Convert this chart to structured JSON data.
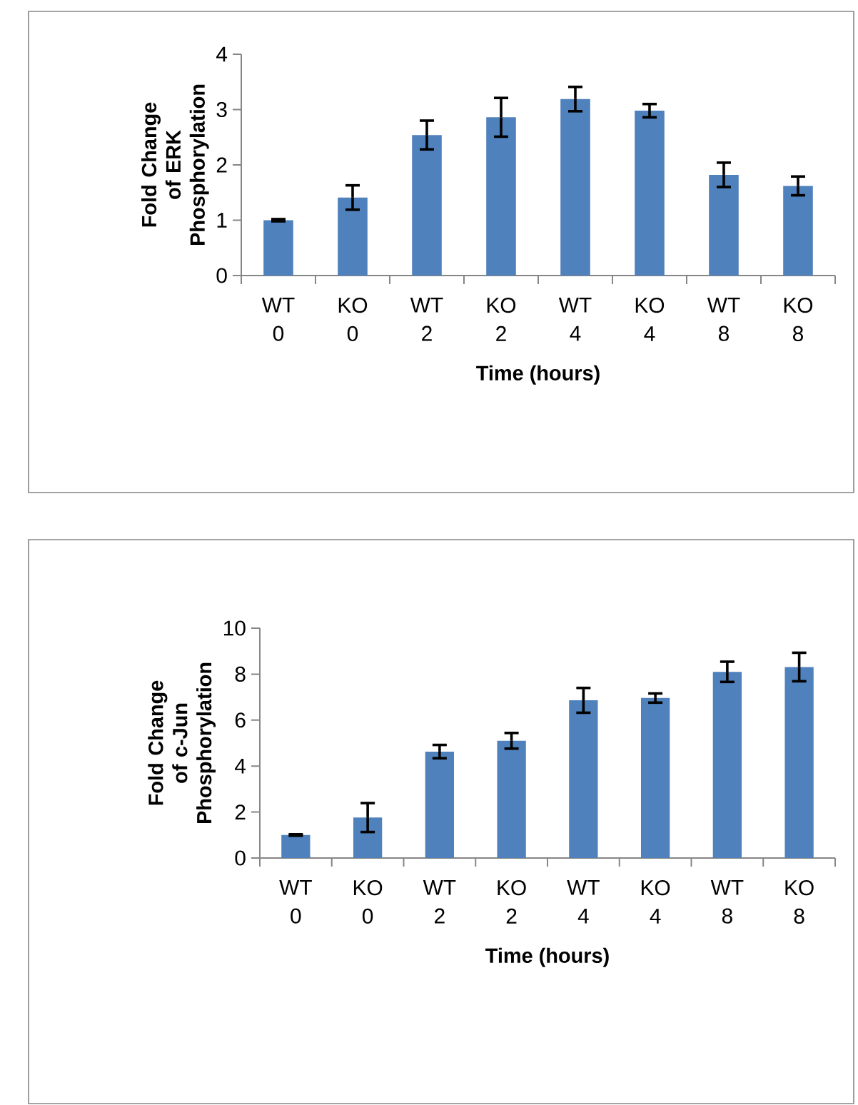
{
  "chart_data": [
    {
      "type": "bar",
      "categories": [
        "WT 0",
        "KO 0",
        "WT 2",
        "KO 2",
        "WT 4",
        "KO 4",
        "WT 8",
        "KO 8"
      ],
      "values": [
        1.0,
        1.41,
        2.54,
        2.86,
        3.19,
        2.98,
        1.82,
        1.62
      ],
      "errors": [
        0.02,
        0.22,
        0.26,
        0.35,
        0.22,
        0.12,
        0.22,
        0.17
      ],
      "color": "#4f81bd",
      "ylim": [
        0,
        4
      ],
      "yticks": [
        0,
        1,
        2,
        3,
        4
      ],
      "xlabel": "Time (hours)",
      "ylabel": "Fold Change of ERK Phosphorylation"
    },
    {
      "type": "bar",
      "categories": [
        "WT 0",
        "KO 0",
        "WT 2",
        "KO 2",
        "WT 4",
        "KO 4",
        "WT 8",
        "KO 8"
      ],
      "values": [
        1.0,
        1.76,
        4.63,
        5.1,
        6.86,
        6.96,
        8.1,
        8.31
      ],
      "errors": [
        0.03,
        0.63,
        0.29,
        0.34,
        0.54,
        0.2,
        0.44,
        0.62
      ],
      "color": "#4f81bd",
      "ylim": [
        0,
        10
      ],
      "yticks": [
        0,
        2,
        4,
        6,
        8,
        10
      ],
      "xlabel": "Time (hours)",
      "ylabel": "Fold Change of c-Jun Phosphorylation"
    }
  ]
}
